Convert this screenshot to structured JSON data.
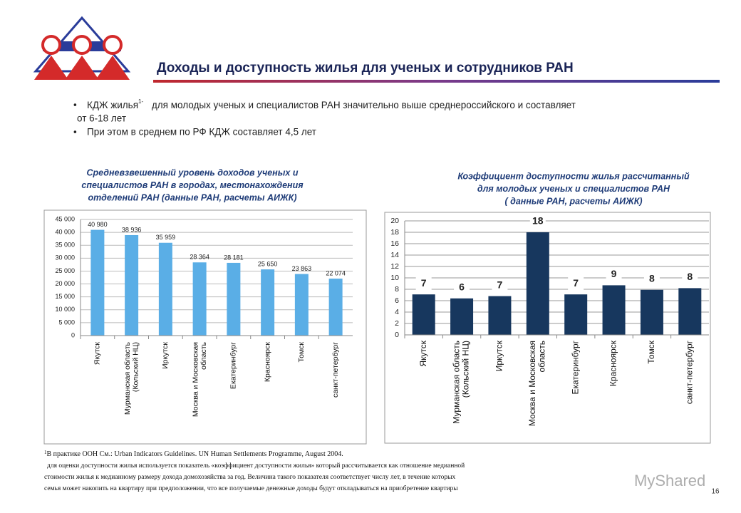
{
  "header": {
    "title": "Доходы и доступность жилья для ученых и сотрудников РАН"
  },
  "bullets": [
    {
      "lead": "КДЖ жилья",
      "sup": "1-",
      "text": "для молодых ученых и специалистов РАН   значительно выше среднероссийского и составляет",
      "text2": "от 6-18 лет"
    },
    {
      "text": "При этом  в среднем по РФ КДЖ составляет 4,5 лет"
    }
  ],
  "chart_data": [
    {
      "type": "bar",
      "title": [
        "Средневзвешенный уровень доходов ученых и",
        "специалистов РАН в городах, местонахождения",
        "отделений РАН (данные РАН, расчеты АИЖК)"
      ],
      "categories": [
        "Якутск",
        "Мурманская область\n(Кольский НЦ)",
        "Иркутск",
        "Москва и Московская\nобласть",
        "Екатеринбург",
        "Красноярск",
        "Томск",
        "санкт-петербург"
      ],
      "values": [
        40980,
        38936,
        35959,
        28364,
        28181,
        25650,
        23863,
        22074
      ],
      "value_labels": [
        "40 980",
        "38 936",
        "35 959",
        "28 364",
        "28 181",
        "25 650",
        "23 863",
        "22 074"
      ],
      "color": "#5aaee6",
      "ylim": [
        0,
        45000
      ],
      "yticks": [
        0,
        {
          "value": 5000,
          "label": "5 000"
        },
        {
          "value": 10000,
          "label": "10 000"
        },
        {
          "value": 15000,
          "label": "15 000"
        },
        {
          "value": 20000,
          "label": "20 000"
        },
        {
          "value": 25000,
          "label": "25 000"
        },
        {
          "value": 30000,
          "label": "30 000"
        },
        {
          "value": 35000,
          "label": "35 000"
        },
        {
          "value": 40000,
          "label": "40 000"
        },
        {
          "value": 45000,
          "label": "45 000"
        }
      ],
      "grid": true
    },
    {
      "type": "bar",
      "title": [
        "Коэффициент доступности жилья рассчитанный",
        "для  молодых ученых и специалистов РАН",
        "( данные РАН, расчеты АИЖК)"
      ],
      "categories": [
        "Якутск",
        "Мурманская область\n(Кольский НЦ)",
        "Иркутск",
        "Москва и Московская\nобласть",
        "Екатеринбург",
        "Красноярск",
        "Томск",
        "санкт-петербург"
      ],
      "values": [
        7.1,
        6.4,
        6.8,
        18,
        7.1,
        8.7,
        7.9,
        8.2
      ],
      "value_labels": [
        "7",
        "6",
        "7",
        "18",
        "7",
        "9",
        "8",
        "8"
      ],
      "color": "#17375e",
      "ylim": [
        0,
        20
      ],
      "yticks": [
        0,
        2,
        4,
        6,
        8,
        10,
        12,
        14,
        16,
        18,
        20
      ],
      "grid": true
    }
  ],
  "footnote": {
    "sup": "1",
    "line1": "В практике ООН См.: Urban Indicators Guidelines. UN Human Settlements Programme, August 2004.",
    "lines": [
      "для оценки доступности жилья используется показатель «коэффициент  доступности жилья» который рассчитывается как отношение медианной",
      "стоимости жилья к медианному размеру дохода домохозяйства за год. Величина такого показателя соответствует числу лет, в течение которых",
      "семья может накопить на квартиру при предположении, что все получаемые денежные доходы будут откладываться на приобретение квартиры"
    ]
  },
  "watermark": "MyShared",
  "page_number": "16"
}
